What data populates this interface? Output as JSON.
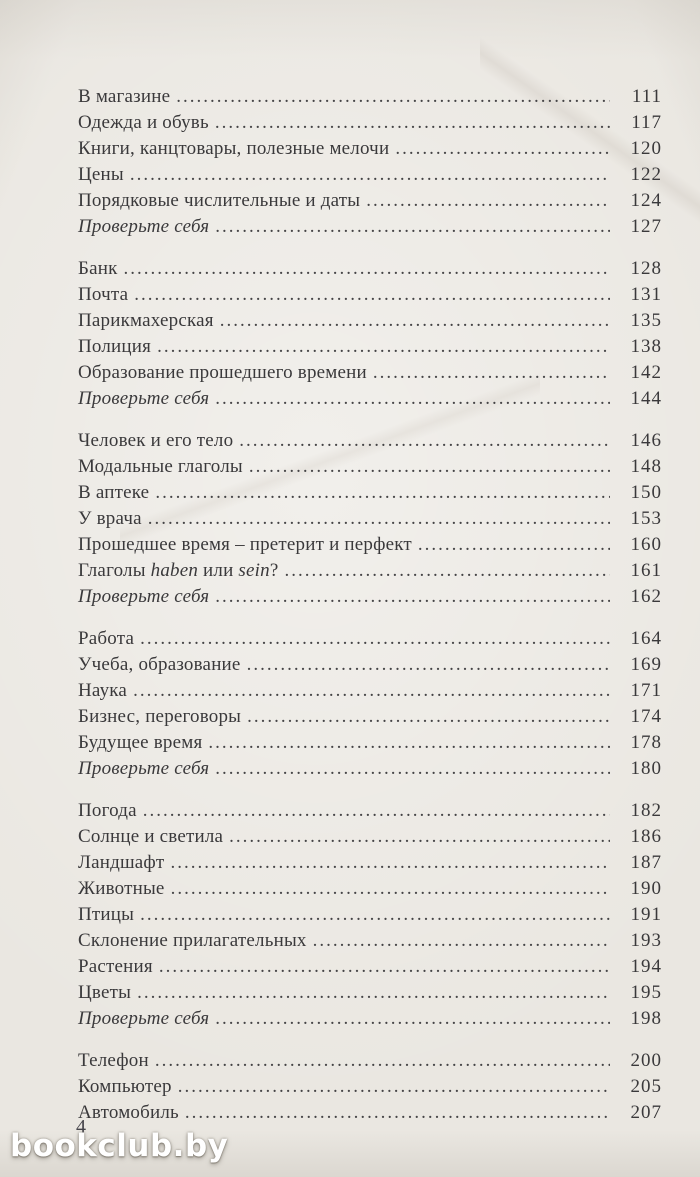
{
  "page": {
    "number": "4",
    "watermark": "bookclub.by"
  },
  "toc": {
    "sections": [
      {
        "entries": [
          {
            "parts": [
              {
                "text": "В магазине",
                "italic": false
              }
            ],
            "page": "111",
            "italic": false
          },
          {
            "parts": [
              {
                "text": "Одежда и обувь",
                "italic": false
              }
            ],
            "page": "117",
            "italic": false
          },
          {
            "parts": [
              {
                "text": "Книги, канцтовары, полезные мелочи",
                "italic": false
              }
            ],
            "page": "120",
            "italic": false
          },
          {
            "parts": [
              {
                "text": "Цены",
                "italic": false
              }
            ],
            "page": "122",
            "italic": false
          },
          {
            "parts": [
              {
                "text": "Порядковые числительные и даты",
                "italic": false
              }
            ],
            "page": "124",
            "italic": false
          },
          {
            "parts": [
              {
                "text": "Проверьте себя",
                "italic": true
              }
            ],
            "page": "127",
            "italic": true
          }
        ]
      },
      {
        "entries": [
          {
            "parts": [
              {
                "text": "Банк",
                "italic": false
              }
            ],
            "page": "128",
            "italic": false
          },
          {
            "parts": [
              {
                "text": "Почта",
                "italic": false
              }
            ],
            "page": "131",
            "italic": false
          },
          {
            "parts": [
              {
                "text": "Парикмахерская",
                "italic": false
              }
            ],
            "page": "135",
            "italic": false
          },
          {
            "parts": [
              {
                "text": "Полиция",
                "italic": false
              }
            ],
            "page": "138",
            "italic": false
          },
          {
            "parts": [
              {
                "text": "Образование прошедшего времени",
                "italic": false
              }
            ],
            "page": "142",
            "italic": false
          },
          {
            "parts": [
              {
                "text": "Проверьте себя",
                "italic": true
              }
            ],
            "page": "144",
            "italic": true
          }
        ]
      },
      {
        "entries": [
          {
            "parts": [
              {
                "text": "Человек и его тело",
                "italic": false
              }
            ],
            "page": "146",
            "italic": false
          },
          {
            "parts": [
              {
                "text": "Модальные глаголы",
                "italic": false
              }
            ],
            "page": "148",
            "italic": false
          },
          {
            "parts": [
              {
                "text": "В аптеке",
                "italic": false
              }
            ],
            "page": "150",
            "italic": false
          },
          {
            "parts": [
              {
                "text": "У врача",
                "italic": false
              }
            ],
            "page": "153",
            "italic": false
          },
          {
            "parts": [
              {
                "text": "Прошедшее время – претерит и перфект",
                "italic": false
              }
            ],
            "page": "160",
            "italic": false
          },
          {
            "parts": [
              {
                "text": "Глаголы ",
                "italic": false
              },
              {
                "text": "haben",
                "italic": true
              },
              {
                "text": " или ",
                "italic": false
              },
              {
                "text": "sein",
                "italic": true
              },
              {
                "text": "?",
                "italic": false
              }
            ],
            "page": "161",
            "italic": false
          },
          {
            "parts": [
              {
                "text": "Проверьте себя",
                "italic": true
              }
            ],
            "page": "162",
            "italic": true
          }
        ]
      },
      {
        "entries": [
          {
            "parts": [
              {
                "text": "Работа",
                "italic": false
              }
            ],
            "page": "164",
            "italic": false
          },
          {
            "parts": [
              {
                "text": "Учеба, образование",
                "italic": false
              }
            ],
            "page": "169",
            "italic": false
          },
          {
            "parts": [
              {
                "text": "Наука",
                "italic": false
              }
            ],
            "page": "171",
            "italic": false
          },
          {
            "parts": [
              {
                "text": "Бизнес, переговоры",
                "italic": false
              }
            ],
            "page": "174",
            "italic": false
          },
          {
            "parts": [
              {
                "text": "Будущее время",
                "italic": false
              }
            ],
            "page": "178",
            "italic": false
          },
          {
            "parts": [
              {
                "text": "Проверьте себя",
                "italic": true
              }
            ],
            "page": "180",
            "italic": true
          }
        ]
      },
      {
        "entries": [
          {
            "parts": [
              {
                "text": "Погода",
                "italic": false
              }
            ],
            "page": "182",
            "italic": false
          },
          {
            "parts": [
              {
                "text": "Солнце и светила",
                "italic": false
              }
            ],
            "page": "186",
            "italic": false
          },
          {
            "parts": [
              {
                "text": "Ландшафт",
                "italic": false
              }
            ],
            "page": "187",
            "italic": false
          },
          {
            "parts": [
              {
                "text": "Животные",
                "italic": false
              }
            ],
            "page": "190",
            "italic": false
          },
          {
            "parts": [
              {
                "text": "Птицы",
                "italic": false
              }
            ],
            "page": "191",
            "italic": false
          },
          {
            "parts": [
              {
                "text": "Склонение прилагательных",
                "italic": false
              }
            ],
            "page": "193",
            "italic": false
          },
          {
            "parts": [
              {
                "text": "Растения",
                "italic": false
              }
            ],
            "page": "194",
            "italic": false
          },
          {
            "parts": [
              {
                "text": "Цветы",
                "italic": false
              }
            ],
            "page": "195",
            "italic": false
          },
          {
            "parts": [
              {
                "text": "Проверьте себя",
                "italic": true
              }
            ],
            "page": "198",
            "italic": true
          }
        ]
      },
      {
        "entries": [
          {
            "parts": [
              {
                "text": "Телефон",
                "italic": false
              }
            ],
            "page": "200",
            "italic": false
          },
          {
            "parts": [
              {
                "text": "Компьютер",
                "italic": false
              }
            ],
            "page": "205",
            "italic": false
          },
          {
            "parts": [
              {
                "text": "Автомобиль",
                "italic": false
              }
            ],
            "page": "207",
            "italic": false
          }
        ]
      }
    ]
  }
}
